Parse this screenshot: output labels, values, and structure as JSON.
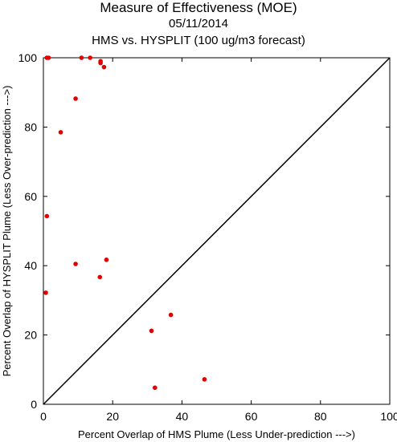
{
  "header": {
    "title": "Measure of Effectiveness (MOE)",
    "date": "05/11/2014",
    "subtitle": "HMS vs. HYSPLIT  (100 ug/m3 forecast)"
  },
  "colors": {
    "points": "#e00000",
    "axes": "#000000",
    "background": "#ffffff"
  },
  "chart_data": {
    "type": "scatter",
    "title": "Measure of Effectiveness (MOE)",
    "xlabel": "Percent Overlap of HMS Plume (Less Under-prediction --->)",
    "ylabel": "Percent Overlap of HYSPLIT Plume (Less Over-prediction --->)",
    "xlim": [
      0,
      100
    ],
    "ylim": [
      0,
      100
    ],
    "xticks": [
      0,
      20,
      40,
      60,
      80,
      100
    ],
    "yticks": [
      0,
      20,
      40,
      60,
      80,
      100
    ],
    "reference_line": "diagonal y = x",
    "grid": false,
    "points": [
      {
        "x": 1.0,
        "y": 100.0
      },
      {
        "x": 1.5,
        "y": 100.0
      },
      {
        "x": 11.0,
        "y": 100.0
      },
      {
        "x": 13.5,
        "y": 100.0
      },
      {
        "x": 16.5,
        "y": 99.0
      },
      {
        "x": 16.5,
        "y": 98.5
      },
      {
        "x": 17.5,
        "y": 97.3
      },
      {
        "x": 9.3,
        "y": 88.2
      },
      {
        "x": 5.0,
        "y": 78.5
      },
      {
        "x": 1.0,
        "y": 54.3
      },
      {
        "x": 9.3,
        "y": 40.5
      },
      {
        "x": 18.2,
        "y": 41.7
      },
      {
        "x": 16.3,
        "y": 36.7
      },
      {
        "x": 0.7,
        "y": 32.2
      },
      {
        "x": 36.8,
        "y": 25.8
      },
      {
        "x": 31.2,
        "y": 21.2
      },
      {
        "x": 46.5,
        "y": 7.2
      },
      {
        "x": 32.2,
        "y": 4.8
      }
    ]
  }
}
